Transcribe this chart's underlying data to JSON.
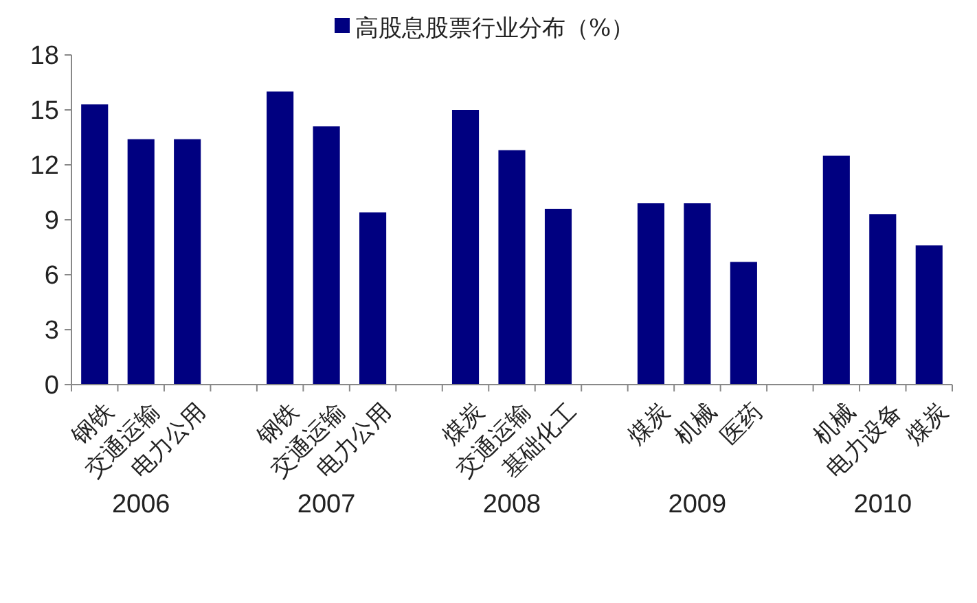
{
  "chart_data": {
    "type": "bar",
    "categories": [
      "钢铁",
      "交通运输",
      "电力公用",
      null,
      "钢铁",
      "交通运输",
      "电力公用",
      null,
      "煤炭",
      "交通运输",
      "基础化工",
      null,
      "煤炭",
      "机械",
      "医药",
      null,
      "机械",
      "电力设备",
      "煤炭"
    ],
    "series": [
      {
        "name": "高股息股票行业分布（%）",
        "color": "#000080",
        "values": [
          15.3,
          13.4,
          13.4,
          null,
          16.0,
          14.1,
          9.4,
          null,
          15.0,
          12.8,
          9.6,
          null,
          9.9,
          9.9,
          6.7,
          null,
          12.5,
          9.3,
          7.6
        ]
      }
    ],
    "ylim": [
      0,
      18
    ],
    "yticks": [
      0,
      3,
      6,
      9,
      12,
      15,
      18
    ],
    "grid": false,
    "legend": "top",
    "annotations": [
      "2006",
      "2007",
      "2008",
      "2009",
      "2010"
    ]
  }
}
